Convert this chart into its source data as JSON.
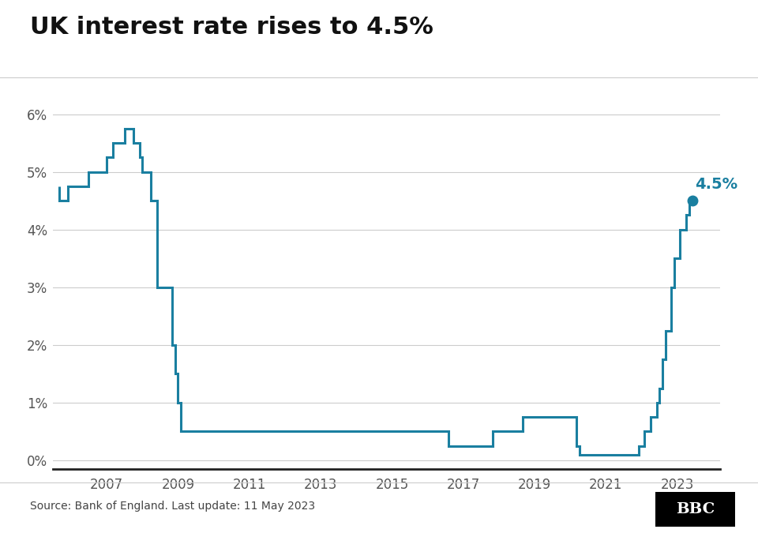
{
  "title": "UK interest rate rises to 4.5%",
  "source_text": "Source: Bank of England. Last update: 11 May 2023",
  "line_color": "#1a7fa0",
  "annotation_color": "#1a7fa0",
  "background_color": "#ffffff",
  "ylim": [
    -0.15,
    6.5
  ],
  "yticks": [
    0,
    1,
    2,
    3,
    4,
    5,
    6
  ],
  "ytick_labels": [
    "0%",
    "1%",
    "2%",
    "3%",
    "4%",
    "5%",
    "6%"
  ],
  "grid_color": "#cccccc",
  "annotation_value": "4.5%",
  "line_width": 2.2,
  "xlim": [
    2005.5,
    2024.2
  ],
  "xtick_years": [
    2007,
    2009,
    2011,
    2013,
    2015,
    2017,
    2019,
    2021,
    2023
  ],
  "data": [
    [
      2006.25,
      4.75
    ],
    [
      2006.5,
      4.75
    ],
    [
      2006.5,
      5.0
    ],
    [
      2007.0,
      5.0
    ],
    [
      2007.0,
      5.25
    ],
    [
      2007.17,
      5.25
    ],
    [
      2007.17,
      5.5
    ],
    [
      2007.5,
      5.5
    ],
    [
      2007.5,
      5.75
    ],
    [
      2007.75,
      5.75
    ],
    [
      2007.75,
      5.5
    ],
    [
      2007.92,
      5.5
    ],
    [
      2007.92,
      5.25
    ],
    [
      2008.0,
      5.25
    ],
    [
      2008.0,
      5.0
    ],
    [
      2008.25,
      5.0
    ],
    [
      2008.25,
      4.5
    ],
    [
      2008.42,
      4.5
    ],
    [
      2008.42,
      3.0
    ],
    [
      2008.83,
      3.0
    ],
    [
      2008.83,
      2.0
    ],
    [
      2008.92,
      2.0
    ],
    [
      2008.92,
      1.5
    ],
    [
      2009.0,
      1.5
    ],
    [
      2009.0,
      1.0
    ],
    [
      2009.08,
      1.0
    ],
    [
      2009.08,
      0.5
    ],
    [
      2016.58,
      0.5
    ],
    [
      2016.58,
      0.25
    ],
    [
      2017.83,
      0.25
    ],
    [
      2017.83,
      0.5
    ],
    [
      2018.67,
      0.5
    ],
    [
      2018.67,
      0.75
    ],
    [
      2019.67,
      0.75
    ],
    [
      2020.17,
      0.75
    ],
    [
      2020.17,
      0.25
    ],
    [
      2020.25,
      0.25
    ],
    [
      2020.25,
      0.1
    ],
    [
      2021.92,
      0.1
    ],
    [
      2021.92,
      0.25
    ],
    [
      2022.08,
      0.25
    ],
    [
      2022.08,
      0.5
    ],
    [
      2022.25,
      0.5
    ],
    [
      2022.25,
      0.75
    ],
    [
      2022.42,
      0.75
    ],
    [
      2022.42,
      1.0
    ],
    [
      2022.5,
      1.0
    ],
    [
      2022.5,
      1.25
    ],
    [
      2022.58,
      1.25
    ],
    [
      2022.58,
      1.75
    ],
    [
      2022.67,
      1.75
    ],
    [
      2022.67,
      2.25
    ],
    [
      2022.83,
      2.25
    ],
    [
      2022.83,
      3.0
    ],
    [
      2022.92,
      3.0
    ],
    [
      2022.92,
      3.5
    ],
    [
      2023.0,
      3.5
    ],
    [
      2023.08,
      3.5
    ],
    [
      2023.08,
      4.0
    ],
    [
      2023.25,
      4.0
    ],
    [
      2023.25,
      4.25
    ],
    [
      2023.33,
      4.25
    ],
    [
      2023.33,
      4.5
    ],
    [
      2023.42,
      4.5
    ]
  ],
  "start_data": [
    [
      2005.67,
      4.75
    ],
    [
      2005.67,
      4.5
    ],
    [
      2005.92,
      4.5
    ],
    [
      2005.92,
      4.75
    ],
    [
      2006.25,
      4.75
    ]
  ]
}
